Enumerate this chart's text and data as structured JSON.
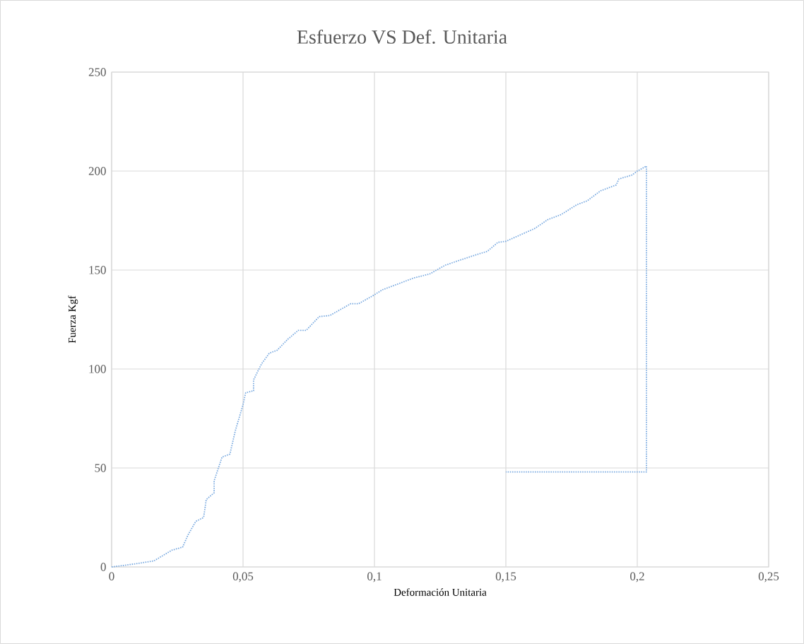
{
  "chart_data": {
    "type": "line",
    "title": "Esfuerzo VS Def. Unitaria",
    "xlabel": "Deformación Unitaria",
    "ylabel": "Fuerza Kgf",
    "x": [
      0,
      0.006,
      0.016,
      0.023,
      0.027,
      0.029,
      0.032,
      0.035,
      0.036,
      0.039,
      0.039,
      0.042,
      0.045,
      0.047,
      0.05,
      0.051,
      0.054,
      0.054,
      0.057,
      0.06,
      0.063,
      0.067,
      0.071,
      0.074,
      0.079,
      0.083,
      0.091,
      0.094,
      0.1,
      0.103,
      0.11,
      0.115,
      0.121,
      0.127,
      0.137,
      0.143,
      0.147,
      0.15,
      0.161,
      0.166,
      0.171,
      0.177,
      0.181,
      0.186,
      0.192,
      0.193,
      0.198,
      0.2,
      0.2035,
      0.2035,
      0.15
    ],
    "series": [
      {
        "color": "#7aaae0",
        "values": [
          0,
          1,
          3,
          8.5,
          10,
          16,
          23,
          25,
          34,
          37.5,
          43.5,
          55.5,
          57,
          68.5,
          82,
          88,
          89,
          94.5,
          102.5,
          108,
          109.5,
          115,
          119.5,
          119.5,
          126.5,
          127,
          133,
          133,
          137.5,
          140,
          143.5,
          146,
          148,
          152.5,
          157,
          159.5,
          164,
          164.5,
          171,
          175.5,
          178,
          183,
          185,
          190,
          193,
          196,
          198,
          200,
          202.5,
          48,
          48
        ]
      }
    ],
    "xlim": [
      0,
      0.25
    ],
    "ylim": [
      0,
      250
    ],
    "xticks": [
      0,
      {
        "value": 0.05,
        "label": "0,05"
      },
      {
        "value": 0.1,
        "label": "0,1"
      },
      {
        "value": 0.15,
        "label": "0,15"
      },
      {
        "value": 0.2,
        "label": "0,2"
      },
      {
        "value": 0.25,
        "label": "0,25"
      }
    ],
    "yticks": [
      0,
      50,
      100,
      150,
      200,
      250
    ],
    "grid": true,
    "marker": "none",
    "line_style": "dotted"
  }
}
